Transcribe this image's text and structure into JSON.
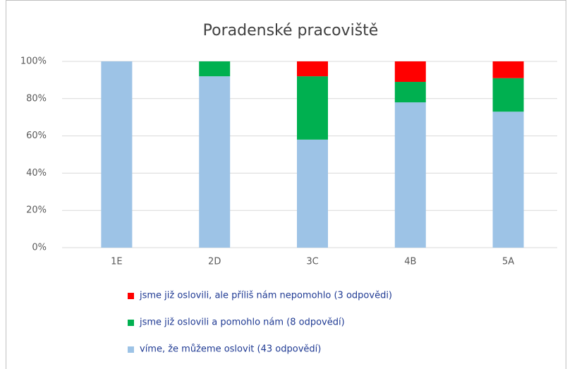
{
  "chart_data": {
    "type": "stacked_bar",
    "title": "Poradenské pracoviště",
    "categories": [
      "1E",
      "2D",
      "3C",
      "4B",
      "5A"
    ],
    "series": [
      {
        "name": "víme, že můžeme oslovit (43 odpovědí)",
        "color": "#9dc3e6",
        "values": [
          100,
          92,
          58,
          78,
          73
        ]
      },
      {
        "name": "jsme již oslovili a pomohlo nám (8 odpovědí)",
        "color": "#00b050",
        "values": [
          0,
          8,
          34,
          11,
          18
        ]
      },
      {
        "name": "jsme již oslovili, ale příliš nám nepomohlo (3 odpovědi)",
        "color": "#ff0000",
        "values": [
          0,
          0,
          8,
          11,
          9
        ]
      }
    ],
    "ylim": [
      0,
      100
    ],
    "yticks": [
      {
        "value": 0,
        "label": "0%"
      },
      {
        "value": 20,
        "label": "20%"
      },
      {
        "value": 40,
        "label": "40%"
      },
      {
        "value": 60,
        "label": "60%"
      },
      {
        "value": 80,
        "label": "80%"
      },
      {
        "value": 100,
        "label": "100%"
      }
    ],
    "grid": true,
    "legend": "bottom"
  }
}
